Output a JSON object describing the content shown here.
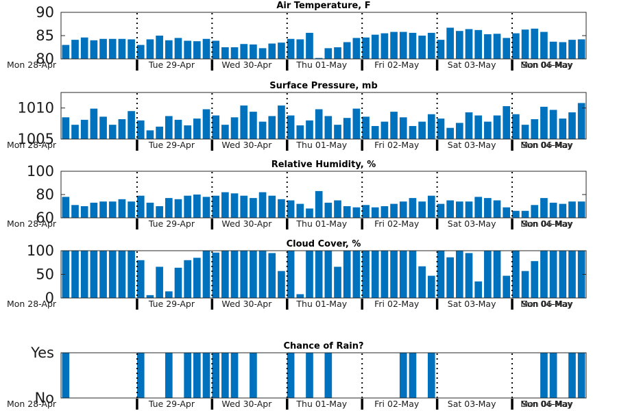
{
  "chart_data": [
    {
      "type": "bar",
      "title": "Air Temperature, F",
      "ylim": [
        80,
        90
      ],
      "yticks": [
        80,
        85,
        90
      ],
      "ytick_labels": [
        "80",
        "85",
        "90"
      ],
      "bar_color": "#0072BD",
      "values": [
        83.0,
        84.1,
        84.6,
        84.0,
        84.3,
        84.3,
        84.3,
        84.2,
        83.0,
        84.2,
        85.0,
        84.0,
        84.5,
        83.9,
        83.8,
        84.3,
        83.9,
        82.5,
        82.5,
        83.2,
        83.1,
        82.3,
        83.3,
        83.5,
        84.3,
        84.2,
        85.6,
        80.2,
        82.3,
        82.5,
        83.6,
        84.5,
        84.6,
        85.2,
        85.5,
        85.8,
        85.8,
        85.6,
        85.0,
        85.6,
        84.1,
        86.7,
        86.0,
        86.4,
        86.2,
        85.3,
        85.4,
        84.5,
        85.5,
        86.3,
        86.5,
        85.8,
        83.7,
        83.6,
        84.1,
        84.2
      ]
    },
    {
      "type": "bar",
      "title": "Surface Pressure, mb",
      "ylim": [
        1005,
        1012.5
      ],
      "yticks": [
        1005,
        1010
      ],
      "ytick_labels": [
        "1005",
        "1010"
      ],
      "bar_color": "#0072BD",
      "values": [
        1008.5,
        1007.3,
        1008.1,
        1009.9,
        1008.6,
        1007.3,
        1008.2,
        1009.5,
        1008.0,
        1006.4,
        1007.0,
        1008.7,
        1008.1,
        1007.2,
        1008.3,
        1009.8,
        1008.8,
        1007.3,
        1008.5,
        1010.4,
        1009.4,
        1007.8,
        1008.7,
        1010.4,
        1008.8,
        1007.2,
        1008.0,
        1009.8,
        1008.7,
        1007.3,
        1008.4,
        1009.9,
        1008.6,
        1007.1,
        1007.8,
        1009.4,
        1008.5,
        1007.1,
        1007.8,
        1009.0,
        1008.3,
        1006.8,
        1007.6,
        1009.3,
        1008.8,
        1007.8,
        1008.8,
        1010.3,
        1009.0,
        1007.3,
        1008.2,
        1010.2,
        1009.7,
        1008.3,
        1009.3,
        1010.8
      ]
    },
    {
      "type": "bar",
      "title": "Relative Humidity, %",
      "ylim": [
        60,
        100
      ],
      "yticks": [
        60,
        80,
        100
      ],
      "ytick_labels": [
        "60",
        "80",
        "100"
      ],
      "bar_color": "#0072BD",
      "values": [
        78,
        71,
        70,
        73,
        74,
        74,
        76,
        74,
        79,
        73,
        70,
        77,
        76,
        79,
        80,
        78,
        79,
        82,
        81,
        79,
        77,
        82,
        79,
        76,
        75,
        72,
        68,
        83,
        73,
        75,
        70,
        69,
        71,
        69,
        70,
        72,
        74,
        77,
        74,
        79,
        72,
        75,
        74,
        74,
        78,
        77,
        75,
        69,
        66,
        66,
        71,
        77,
        73,
        72,
        74,
        74
      ]
    },
    {
      "type": "bar",
      "title": "Cloud Cover, %",
      "ylim": [
        0,
        100
      ],
      "yticks": [
        0,
        50,
        100
      ],
      "ytick_labels": [
        "0",
        "50",
        "100"
      ],
      "bar_color": "#0072BD",
      "values": [
        100,
        100,
        100,
        100,
        100,
        100,
        100,
        100,
        80,
        6,
        66,
        14,
        64,
        80,
        85,
        100,
        96,
        100,
        100,
        100,
        100,
        100,
        95,
        57,
        100,
        8,
        100,
        100,
        100,
        66,
        100,
        100,
        100,
        100,
        100,
        100,
        100,
        100,
        67,
        47,
        100,
        86,
        100,
        95,
        35,
        100,
        100,
        47,
        100,
        57,
        78,
        100,
        100,
        100,
        100,
        100
      ]
    },
    {
      "type": "bar",
      "title": "Chance of Rain?",
      "ylim": [
        0,
        1
      ],
      "yticks": [
        0,
        1
      ],
      "ytick_labels": [
        "No",
        "Yes"
      ],
      "bar_color": "#0072BD",
      "values": [
        1,
        0,
        0,
        0,
        0,
        0,
        0,
        0,
        1,
        0,
        0,
        1,
        0,
        1,
        1,
        1,
        1,
        1,
        1,
        0,
        1,
        0,
        0,
        0,
        1,
        0,
        1,
        0,
        1,
        0,
        0,
        0,
        0,
        0,
        0,
        0,
        1,
        1,
        0,
        1,
        0,
        0,
        0,
        0,
        0,
        0,
        0,
        0,
        0,
        0,
        0,
        1,
        1,
        0,
        1,
        1
      ]
    }
  ],
  "x_axis": {
    "day_boundaries": [
      0,
      8,
      16,
      24,
      32,
      40,
      48,
      56
    ],
    "day_labels": [
      "Mon 28-Apr",
      "Tue 29-Apr",
      "Wed 30-Apr",
      "Thu 01-May",
      "Fri 02-May",
      "Sat 03-May",
      "Sun 04-May",
      "Mon 06-May"
    ],
    "bars_per_day": 8,
    "n_bars": 56
  },
  "colors": {
    "bar": "#0072BD",
    "axis": "#262626",
    "text": "#1a1a1a"
  }
}
